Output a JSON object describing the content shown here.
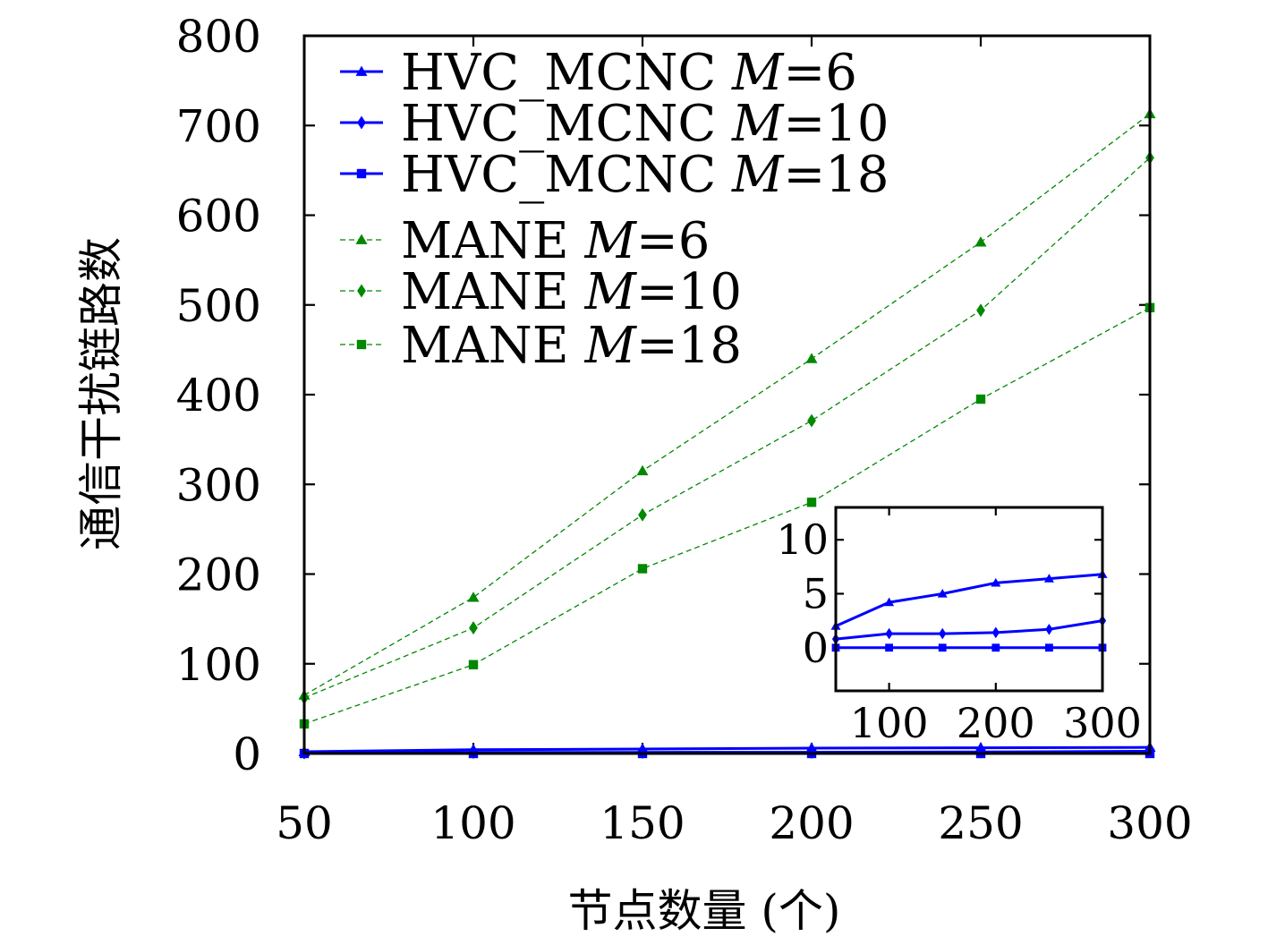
{
  "chart_data": [
    {
      "type": "line",
      "title": "",
      "xlabel": "节点数量 (个)",
      "ylabel": "通信干扰链路数",
      "xlim": [
        50,
        300
      ],
      "ylim": [
        0,
        800
      ],
      "xticks": [
        50,
        100,
        150,
        200,
        250,
        300
      ],
      "yticks": [
        0,
        100,
        200,
        300,
        400,
        500,
        600,
        700,
        800
      ],
      "grid": false,
      "legend_position": "top-left",
      "x": [
        50,
        100,
        150,
        200,
        250,
        300
      ],
      "series": [
        {
          "name": "HVC_MCNC",
          "param": "M",
          "param_value": "6",
          "color": "#0000ff",
          "marker": "triangle",
          "line": "solid",
          "values": [
            2,
            4.2,
            5,
            6,
            6.4,
            6.8
          ]
        },
        {
          "name": "HVC_MCNC",
          "param": "M",
          "param_value": "10",
          "color": "#0000ff",
          "marker": "diamond",
          "line": "solid",
          "values": [
            0.8,
            1.3,
            1.3,
            1.4,
            1.7,
            2.5
          ]
        },
        {
          "name": "HVC_MCNC",
          "param": "M",
          "param_value": "18",
          "color": "#0000ff",
          "marker": "square",
          "line": "solid",
          "values": [
            0,
            0,
            0,
            0,
            0,
            0
          ]
        },
        {
          "name": "MANE",
          "param": "M",
          "param_value": "6",
          "color": "#008800",
          "marker": "triangle",
          "line": "dashed",
          "values": [
            65,
            174,
            315,
            440,
            570,
            713
          ]
        },
        {
          "name": "MANE",
          "param": "M",
          "param_value": "10",
          "color": "#008800",
          "marker": "diamond",
          "line": "dashed",
          "values": [
            62,
            140,
            266,
            371,
            494,
            664
          ]
        },
        {
          "name": "MANE",
          "param": "M",
          "param_value": "18",
          "color": "#008800",
          "marker": "square",
          "line": "dashed",
          "values": [
            33,
            99,
            206,
            280,
            395,
            497
          ]
        }
      ]
    },
    {
      "type": "line",
      "title": "",
      "role": "inset",
      "xlim": [
        50,
        300
      ],
      "ylim": [
        -4,
        13
      ],
      "xticks": [
        100,
        200,
        300
      ],
      "yticks": [
        0,
        5,
        10
      ],
      "grid": false,
      "x": [
        50,
        100,
        150,
        200,
        250,
        300
      ],
      "series_refs": [
        0,
        1,
        2
      ]
    }
  ]
}
